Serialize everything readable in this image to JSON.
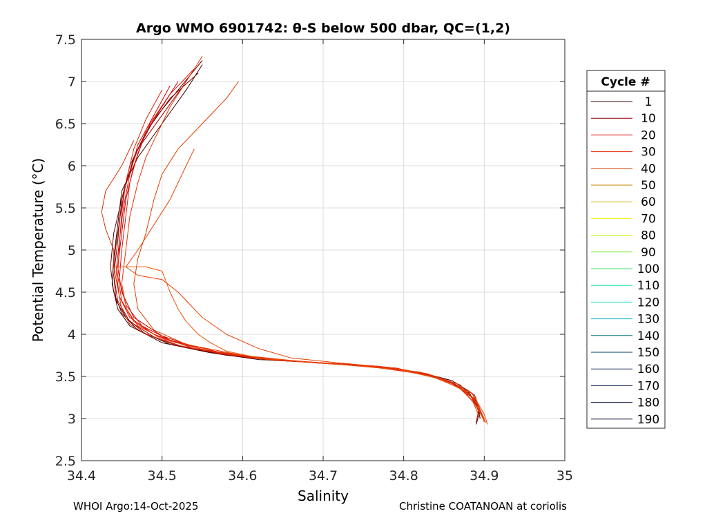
{
  "chart_data": {
    "type": "line",
    "title": "Argo WMO 6901742: θ-S below 500 dbar,  QC=(1,2)",
    "xlabel": "Salinity",
    "ylabel": "Potential Temperature (°C)",
    "xlim": [
      34.4,
      35.0
    ],
    "ylim": [
      2.5,
      7.5
    ],
    "xticks": [
      34.4,
      34.5,
      34.6,
      34.7,
      34.8,
      34.9,
      35.0
    ],
    "xtick_labels": [
      "34.4",
      "34.5",
      "34.6",
      "34.7",
      "34.8",
      "34.9",
      "35"
    ],
    "yticks": [
      2.5,
      3.0,
      3.5,
      4.0,
      4.5,
      5.0,
      5.5,
      6.0,
      6.5,
      7.0,
      7.5
    ],
    "ytick_labels": [
      "2.5",
      "3",
      "3.5",
      "4",
      "4.5",
      "5",
      "5.5",
      "6",
      "6.5",
      "7",
      "7.5"
    ],
    "grid": true,
    "legend": {
      "title": "Cycle #",
      "placement": "right",
      "entries": [
        {
          "label": "1",
          "color": "#3a0000"
        },
        {
          "label": "10",
          "color": "#8b0000"
        },
        {
          "label": "20",
          "color": "#d40000"
        },
        {
          "label": "30",
          "color": "#e62000"
        },
        {
          "label": "40",
          "color": "#e04000"
        },
        {
          "label": "50",
          "color": "#c88000"
        },
        {
          "label": "60",
          "color": "#c8b400"
        },
        {
          "label": "70",
          "color": "#f0f000"
        },
        {
          "label": "80",
          "color": "#b8f000"
        },
        {
          "label": "90",
          "color": "#80f040"
        },
        {
          "label": "100",
          "color": "#40e060"
        },
        {
          "label": "110",
          "color": "#20e0a0"
        },
        {
          "label": "120",
          "color": "#20e0e0"
        },
        {
          "label": "130",
          "color": "#10b0c0"
        },
        {
          "label": "140",
          "color": "#007080"
        },
        {
          "label": "150",
          "color": "#004060"
        },
        {
          "label": "160",
          "color": "#203060"
        },
        {
          "label": "170",
          "color": "#101850"
        },
        {
          "label": "180",
          "color": "#0a1040"
        },
        {
          "label": "190",
          "color": "#050a30"
        }
      ]
    },
    "series": [
      {
        "color": "#3a0000",
        "points": [
          [
            34.55,
            7.2
          ],
          [
            34.53,
            6.9
          ],
          [
            34.5,
            6.5
          ],
          [
            34.47,
            6.1
          ],
          [
            34.45,
            5.7
          ],
          [
            34.445,
            5.3
          ],
          [
            34.44,
            4.9
          ],
          [
            34.438,
            4.6
          ],
          [
            34.445,
            4.3
          ],
          [
            34.46,
            4.1
          ],
          [
            34.5,
            3.9
          ],
          [
            34.56,
            3.78
          ],
          [
            34.62,
            3.7
          ],
          [
            34.7,
            3.66
          ],
          [
            34.76,
            3.62
          ],
          [
            34.82,
            3.55
          ],
          [
            34.86,
            3.45
          ],
          [
            34.885,
            3.3
          ],
          [
            34.895,
            3.1
          ],
          [
            34.89,
            2.93
          ]
        ]
      },
      {
        "color": "#600000",
        "points": [
          [
            34.55,
            7.25
          ],
          [
            34.52,
            6.9
          ],
          [
            34.49,
            6.55
          ],
          [
            34.465,
            6.1
          ],
          [
            34.45,
            5.6
          ],
          [
            34.44,
            5.2
          ],
          [
            34.436,
            4.8
          ],
          [
            34.44,
            4.5
          ],
          [
            34.45,
            4.25
          ],
          [
            34.47,
            4.05
          ],
          [
            34.51,
            3.88
          ],
          [
            34.57,
            3.77
          ],
          [
            34.64,
            3.69
          ],
          [
            34.72,
            3.65
          ],
          [
            34.78,
            3.6
          ],
          [
            34.84,
            3.5
          ],
          [
            34.87,
            3.4
          ],
          [
            34.89,
            3.2
          ],
          [
            34.895,
            3.0
          ]
        ]
      },
      {
        "color": "#8b0000",
        "points": [
          [
            34.545,
            7.1
          ],
          [
            34.51,
            6.8
          ],
          [
            34.48,
            6.4
          ],
          [
            34.46,
            6.0
          ],
          [
            34.45,
            5.6
          ],
          [
            34.445,
            5.1
          ],
          [
            34.44,
            4.7
          ],
          [
            34.443,
            4.4
          ],
          [
            34.455,
            4.2
          ],
          [
            34.48,
            4.0
          ],
          [
            34.52,
            3.86
          ],
          [
            34.58,
            3.75
          ],
          [
            34.66,
            3.68
          ],
          [
            34.74,
            3.64
          ],
          [
            34.8,
            3.58
          ],
          [
            34.85,
            3.47
          ],
          [
            34.88,
            3.33
          ],
          [
            34.893,
            3.1
          ],
          [
            34.89,
            2.95
          ]
        ]
      },
      {
        "color": "#a00000",
        "points": [
          [
            34.53,
            7.0
          ],
          [
            34.5,
            6.6
          ],
          [
            34.47,
            6.2
          ],
          [
            34.455,
            5.8
          ],
          [
            34.448,
            5.4
          ],
          [
            34.442,
            5.0
          ],
          [
            34.44,
            4.7
          ],
          [
            34.445,
            4.4
          ],
          [
            34.46,
            4.15
          ],
          [
            34.49,
            3.97
          ],
          [
            34.53,
            3.84
          ],
          [
            34.6,
            3.73
          ],
          [
            34.68,
            3.67
          ],
          [
            34.75,
            3.63
          ],
          [
            34.81,
            3.56
          ],
          [
            34.855,
            3.44
          ],
          [
            34.882,
            3.3
          ],
          [
            34.895,
            3.05
          ]
        ]
      },
      {
        "color": "#c00000",
        "points": [
          [
            34.52,
            7.0
          ],
          [
            34.5,
            6.7
          ],
          [
            34.48,
            6.4
          ],
          [
            34.465,
            6.0
          ],
          [
            34.455,
            5.6
          ],
          [
            34.45,
            5.2
          ],
          [
            34.445,
            4.8
          ],
          [
            34.45,
            4.5
          ],
          [
            34.465,
            4.2
          ],
          [
            34.5,
            3.98
          ],
          [
            34.55,
            3.82
          ],
          [
            34.62,
            3.72
          ],
          [
            34.7,
            3.66
          ],
          [
            34.77,
            3.62
          ],
          [
            34.82,
            3.54
          ],
          [
            34.86,
            3.42
          ],
          [
            34.885,
            3.25
          ],
          [
            34.9,
            3.0
          ]
        ]
      },
      {
        "color": "#d40000",
        "points": [
          [
            34.51,
            6.95
          ],
          [
            34.49,
            6.6
          ],
          [
            34.47,
            6.25
          ],
          [
            34.46,
            5.9
          ],
          [
            34.452,
            5.5
          ],
          [
            34.447,
            5.1
          ],
          [
            34.443,
            4.75
          ],
          [
            34.447,
            4.45
          ],
          [
            34.46,
            4.2
          ],
          [
            34.49,
            4.0
          ],
          [
            34.54,
            3.83
          ],
          [
            34.61,
            3.72
          ],
          [
            34.69,
            3.66
          ],
          [
            34.76,
            3.62
          ],
          [
            34.82,
            3.55
          ],
          [
            34.86,
            3.43
          ],
          [
            34.888,
            3.28
          ],
          [
            34.898,
            3.02
          ]
        ]
      },
      {
        "color": "#e01000",
        "points": [
          [
            34.54,
            7.15
          ],
          [
            34.51,
            6.85
          ],
          [
            34.485,
            6.5
          ],
          [
            34.47,
            6.15
          ],
          [
            34.46,
            5.8
          ],
          [
            34.455,
            5.4
          ],
          [
            34.45,
            5.0
          ],
          [
            34.447,
            4.65
          ],
          [
            34.455,
            4.35
          ],
          [
            34.475,
            4.1
          ],
          [
            34.51,
            3.93
          ],
          [
            34.57,
            3.79
          ],
          [
            34.64,
            3.7
          ],
          [
            34.72,
            3.64
          ],
          [
            34.79,
            3.6
          ],
          [
            34.84,
            3.5
          ],
          [
            34.875,
            3.35
          ],
          [
            34.893,
            3.15
          ],
          [
            34.9,
            2.96
          ]
        ]
      },
      {
        "color": "#e62000",
        "points": [
          [
            34.5,
            6.9
          ],
          [
            34.48,
            6.55
          ],
          [
            34.465,
            6.2
          ],
          [
            34.455,
            5.8
          ],
          [
            34.45,
            5.45
          ],
          [
            34.447,
            5.05
          ],
          [
            34.445,
            4.7
          ],
          [
            34.45,
            4.4
          ],
          [
            34.465,
            4.15
          ],
          [
            34.495,
            3.97
          ],
          [
            34.55,
            3.82
          ],
          [
            34.62,
            3.71
          ],
          [
            34.7,
            3.66
          ],
          [
            34.77,
            3.6
          ],
          [
            34.83,
            3.52
          ],
          [
            34.865,
            3.4
          ],
          [
            34.89,
            3.22
          ],
          [
            34.9,
            2.98
          ]
        ]
      },
      {
        "color": "#f03000",
        "points": [
          [
            34.55,
            7.3
          ],
          [
            34.53,
            7.0
          ],
          [
            34.51,
            6.7
          ],
          [
            34.495,
            6.4
          ],
          [
            34.48,
            6.1
          ],
          [
            34.47,
            5.8
          ],
          [
            34.46,
            5.4
          ],
          [
            34.455,
            5.0
          ],
          [
            34.45,
            4.6
          ],
          [
            34.456,
            4.3
          ],
          [
            34.47,
            4.1
          ],
          [
            34.505,
            3.93
          ],
          [
            34.56,
            3.8
          ],
          [
            34.63,
            3.7
          ],
          [
            34.71,
            3.65
          ],
          [
            34.78,
            3.6
          ],
          [
            34.835,
            3.5
          ],
          [
            34.87,
            3.36
          ],
          [
            34.89,
            3.16
          ],
          [
            34.902,
            2.95
          ]
        ]
      },
      {
        "color": "#e04000",
        "points": [
          [
            34.595,
            7.0
          ],
          [
            34.58,
            6.8
          ],
          [
            34.55,
            6.5
          ],
          [
            34.52,
            6.2
          ],
          [
            34.5,
            5.9
          ],
          [
            34.49,
            5.6
          ],
          [
            34.48,
            5.2
          ],
          [
            34.47,
            4.9
          ],
          [
            34.465,
            4.6
          ],
          [
            34.47,
            4.3
          ],
          [
            34.49,
            4.05
          ],
          [
            34.53,
            3.88
          ],
          [
            34.6,
            3.75
          ],
          [
            34.68,
            3.67
          ],
          [
            34.75,
            3.63
          ],
          [
            34.81,
            3.56
          ],
          [
            34.855,
            3.45
          ],
          [
            34.885,
            3.3
          ],
          [
            34.9,
            3.05
          ],
          [
            34.904,
            2.93
          ]
        ]
      },
      {
        "color": "#d83000",
        "points": [
          [
            34.465,
            6.3
          ],
          [
            34.45,
            6.0
          ],
          [
            34.43,
            5.7
          ],
          [
            34.425,
            5.45
          ],
          [
            34.43,
            5.25
          ],
          [
            34.44,
            5.0
          ],
          [
            34.44,
            4.8
          ],
          [
            34.445,
            4.55
          ],
          [
            34.45,
            4.3
          ],
          [
            34.46,
            4.12
          ],
          [
            34.48,
            4.0
          ],
          [
            34.52,
            3.87
          ],
          [
            34.58,
            3.76
          ],
          [
            34.65,
            3.69
          ],
          [
            34.72,
            3.65
          ],
          [
            34.78,
            3.6
          ],
          [
            34.83,
            3.52
          ],
          [
            34.865,
            3.4
          ],
          [
            34.885,
            3.22
          ],
          [
            34.895,
            3.0
          ]
        ]
      },
      {
        "color": "#e84000",
        "points": [
          [
            34.54,
            6.2
          ],
          [
            34.51,
            5.6
          ],
          [
            34.49,
            5.3
          ],
          [
            34.47,
            5.0
          ],
          [
            34.455,
            4.8
          ],
          [
            34.47,
            4.7
          ],
          [
            34.5,
            4.65
          ],
          [
            34.52,
            4.5
          ],
          [
            34.55,
            4.2
          ],
          [
            34.58,
            4.0
          ],
          [
            34.62,
            3.83
          ],
          [
            34.66,
            3.72
          ],
          [
            34.72,
            3.66
          ],
          [
            34.78,
            3.61
          ],
          [
            34.83,
            3.53
          ],
          [
            34.87,
            3.4
          ],
          [
            34.89,
            3.2
          ],
          [
            34.9,
            3.0
          ]
        ]
      },
      {
        "color": "#f05000",
        "points": [
          [
            34.44,
            4.8
          ],
          [
            34.48,
            4.8
          ],
          [
            34.5,
            4.75
          ],
          [
            34.51,
            4.5
          ],
          [
            34.52,
            4.3
          ],
          [
            34.53,
            4.15
          ],
          [
            34.545,
            4.0
          ],
          [
            34.56,
            3.9
          ],
          [
            34.58,
            3.8
          ],
          [
            34.62,
            3.72
          ],
          [
            34.68,
            3.67
          ],
          [
            34.74,
            3.63
          ],
          [
            34.8,
            3.57
          ],
          [
            34.845,
            3.47
          ],
          [
            34.875,
            3.33
          ],
          [
            34.892,
            3.12
          ],
          [
            34.9,
            2.97
          ]
        ]
      }
    ]
  },
  "footer": {
    "left": "WHOI Argo:14-Oct-2025",
    "right": "Christine COATANOAN at coriolis"
  }
}
